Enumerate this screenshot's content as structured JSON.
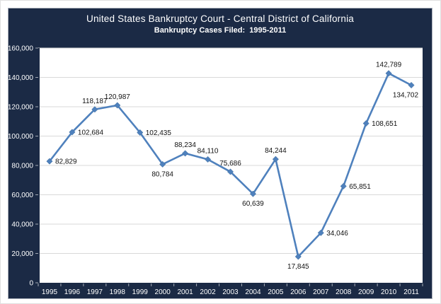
{
  "header": {
    "title": "United States Bankruptcy Court - Central District of California",
    "subtitle": "Bankruptcy Cases Filed:  1995-2011"
  },
  "colors": {
    "panel_bg": "#1B2A45",
    "plot_bg": "#FFFFFF",
    "grid": "#D9D9D9",
    "line": "#4F81BD",
    "marker_stroke": "#3A6999",
    "axis_text": "#FFFFFF",
    "tick": "rgba(255,255,255,0.6)",
    "data_label": "#111111"
  },
  "chart_data": {
    "type": "line",
    "title": "United States Bankruptcy Court - Central District of California",
    "subtitle": "Bankruptcy Cases Filed:  1995-2011",
    "categories": [
      "1995",
      "1996",
      "1997",
      "1998",
      "1999",
      "2000",
      "2001",
      "2002",
      "2003",
      "2004",
      "2005",
      "2006",
      "2007",
      "2008",
      "2009",
      "2010",
      "2011"
    ],
    "series": [
      {
        "name": "Bankruptcy Cases Filed",
        "values": [
          82829,
          102684,
          118187,
          120987,
          102435,
          80784,
          88234,
          84110,
          75686,
          60639,
          84244,
          17845,
          34046,
          65851,
          108651,
          142789,
          134702
        ]
      }
    ],
    "label_positions": [
      "right",
      "right",
      "above",
      "above",
      "right",
      "below",
      "above",
      "above",
      "above",
      "below",
      "above",
      "below",
      "right",
      "right",
      "right",
      "above",
      "below-left"
    ],
    "xlabel": "",
    "ylabel": "",
    "ylim": [
      0,
      160000
    ],
    "ystep": 20000,
    "grid": true,
    "legend_position": "none",
    "data_labels_shown": true
  }
}
